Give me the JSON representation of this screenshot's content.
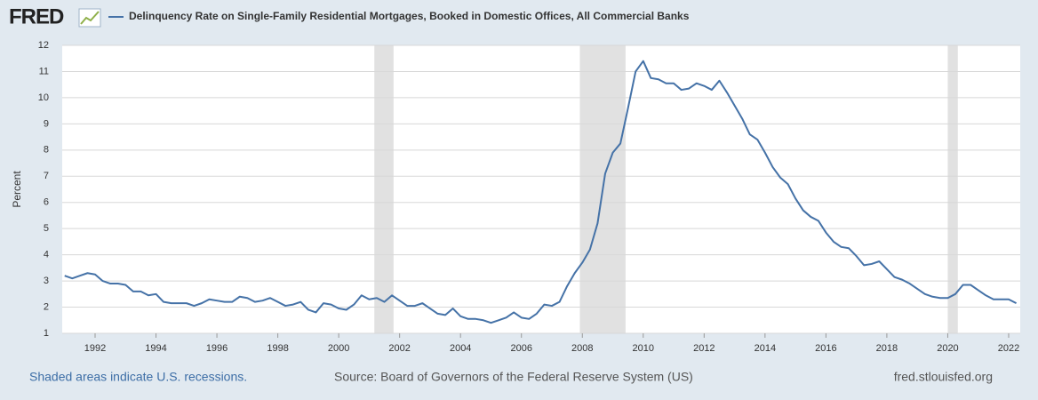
{
  "chart_data": {
    "type": "line",
    "logo": "FRED",
    "title": "Delinquency Rate on Single-Family Residential Mortgages, Booked in Domestic Offices, All Commercial Banks",
    "y_label": "Percent",
    "recession_note": "Shaded areas indicate U.S. recessions.",
    "source": "Source: Board of Governors of the Federal Reserve System (US)",
    "site": "fred.stlouisfed.org",
    "xlim": [
      1990.92,
      2022.38
    ],
    "ylim": [
      1,
      12
    ],
    "xticks": [
      1992,
      1994,
      1996,
      1998,
      2000,
      2002,
      2004,
      2006,
      2008,
      2010,
      2012,
      2014,
      2016,
      2018,
      2020,
      2022
    ],
    "yticks": [
      1,
      2,
      3,
      4,
      5,
      6,
      7,
      8,
      9,
      10,
      11,
      12
    ],
    "grid": true,
    "recessions": [
      [
        2001.17,
        2001.8
      ],
      [
        2007.92,
        2009.42
      ],
      [
        2020.0,
        2020.33
      ]
    ],
    "recession_color": "#e1e1e1",
    "x": [
      1991,
      1991.25,
      1991.5,
      1991.75,
      1992,
      1992.25,
      1992.5,
      1992.75,
      1993,
      1993.25,
      1993.5,
      1993.75,
      1994,
      1994.25,
      1994.5,
      1994.75,
      1995,
      1995.25,
      1995.5,
      1995.75,
      1996,
      1996.25,
      1996.5,
      1996.75,
      1997,
      1997.25,
      1997.5,
      1997.75,
      1998,
      1998.25,
      1998.5,
      1998.75,
      1999,
      1999.25,
      1999.5,
      1999.75,
      2000,
      2000.25,
      2000.5,
      2000.75,
      2001,
      2001.25,
      2001.5,
      2001.75,
      2002,
      2002.25,
      2002.5,
      2002.75,
      2003,
      2003.25,
      2003.5,
      2003.75,
      2004,
      2004.25,
      2004.5,
      2004.75,
      2005,
      2005.25,
      2005.5,
      2005.75,
      2006,
      2006.25,
      2006.5,
      2006.75,
      2007,
      2007.25,
      2007.5,
      2007.75,
      2008,
      2008.25,
      2008.5,
      2008.75,
      2009,
      2009.25,
      2009.5,
      2009.75,
      2010,
      2010.25,
      2010.5,
      2010.75,
      2011,
      2011.25,
      2011.5,
      2011.75,
      2012,
      2012.25,
      2012.5,
      2012.75,
      2013,
      2013.25,
      2013.5,
      2013.75,
      2014,
      2014.25,
      2014.5,
      2014.75,
      2015,
      2015.25,
      2015.5,
      2015.75,
      2016,
      2016.25,
      2016.5,
      2016.75,
      2017,
      2017.25,
      2017.5,
      2017.75,
      2018,
      2018.25,
      2018.5,
      2018.75,
      2019,
      2019.25,
      2019.5,
      2019.75,
      2020,
      2020.25,
      2020.5,
      2020.75,
      2021,
      2021.25,
      2021.5,
      2021.75,
      2022,
      2022.25
    ],
    "series": [
      {
        "name": "Delinquency Rate on Single-Family Residential Mortgages, Booked in Domestic Offices, All Commercial Banks",
        "color": "#4572a7",
        "values": [
          3.2,
          3.1,
          3.2,
          3.3,
          3.25,
          3.0,
          2.9,
          2.9,
          2.85,
          2.6,
          2.6,
          2.45,
          2.5,
          2.2,
          2.15,
          2.15,
          2.15,
          2.05,
          2.15,
          2.3,
          2.25,
          2.2,
          2.2,
          2.4,
          2.35,
          2.2,
          2.25,
          2.35,
          2.2,
          2.05,
          2.1,
          2.2,
          1.9,
          1.8,
          2.15,
          2.1,
          1.95,
          1.9,
          2.1,
          2.45,
          2.3,
          2.35,
          2.2,
          2.45,
          2.25,
          2.05,
          2.05,
          2.15,
          1.95,
          1.75,
          1.7,
          1.95,
          1.65,
          1.55,
          1.55,
          1.5,
          1.4,
          1.5,
          1.6,
          1.8,
          1.6,
          1.55,
          1.75,
          2.1,
          2.05,
          2.2,
          2.8,
          3.3,
          3.7,
          4.2,
          5.2,
          7.1,
          7.9,
          8.25,
          9.6,
          11.0,
          11.4,
          10.75,
          10.7,
          10.55,
          10.55,
          10.3,
          10.35,
          10.55,
          10.45,
          10.3,
          10.65,
          10.2,
          9.7,
          9.2,
          8.6,
          8.4,
          7.9,
          7.35,
          6.95,
          6.7,
          6.15,
          5.7,
          5.45,
          5.3,
          4.85,
          4.5,
          4.3,
          4.25,
          3.95,
          3.6,
          3.65,
          3.75,
          3.45,
          3.15,
          3.05,
          2.9,
          2.7,
          2.5,
          2.4,
          2.35,
          2.35,
          2.5,
          2.85,
          2.85,
          2.65,
          2.45,
          2.3,
          2.3,
          2.3,
          2.15
        ]
      }
    ]
  }
}
